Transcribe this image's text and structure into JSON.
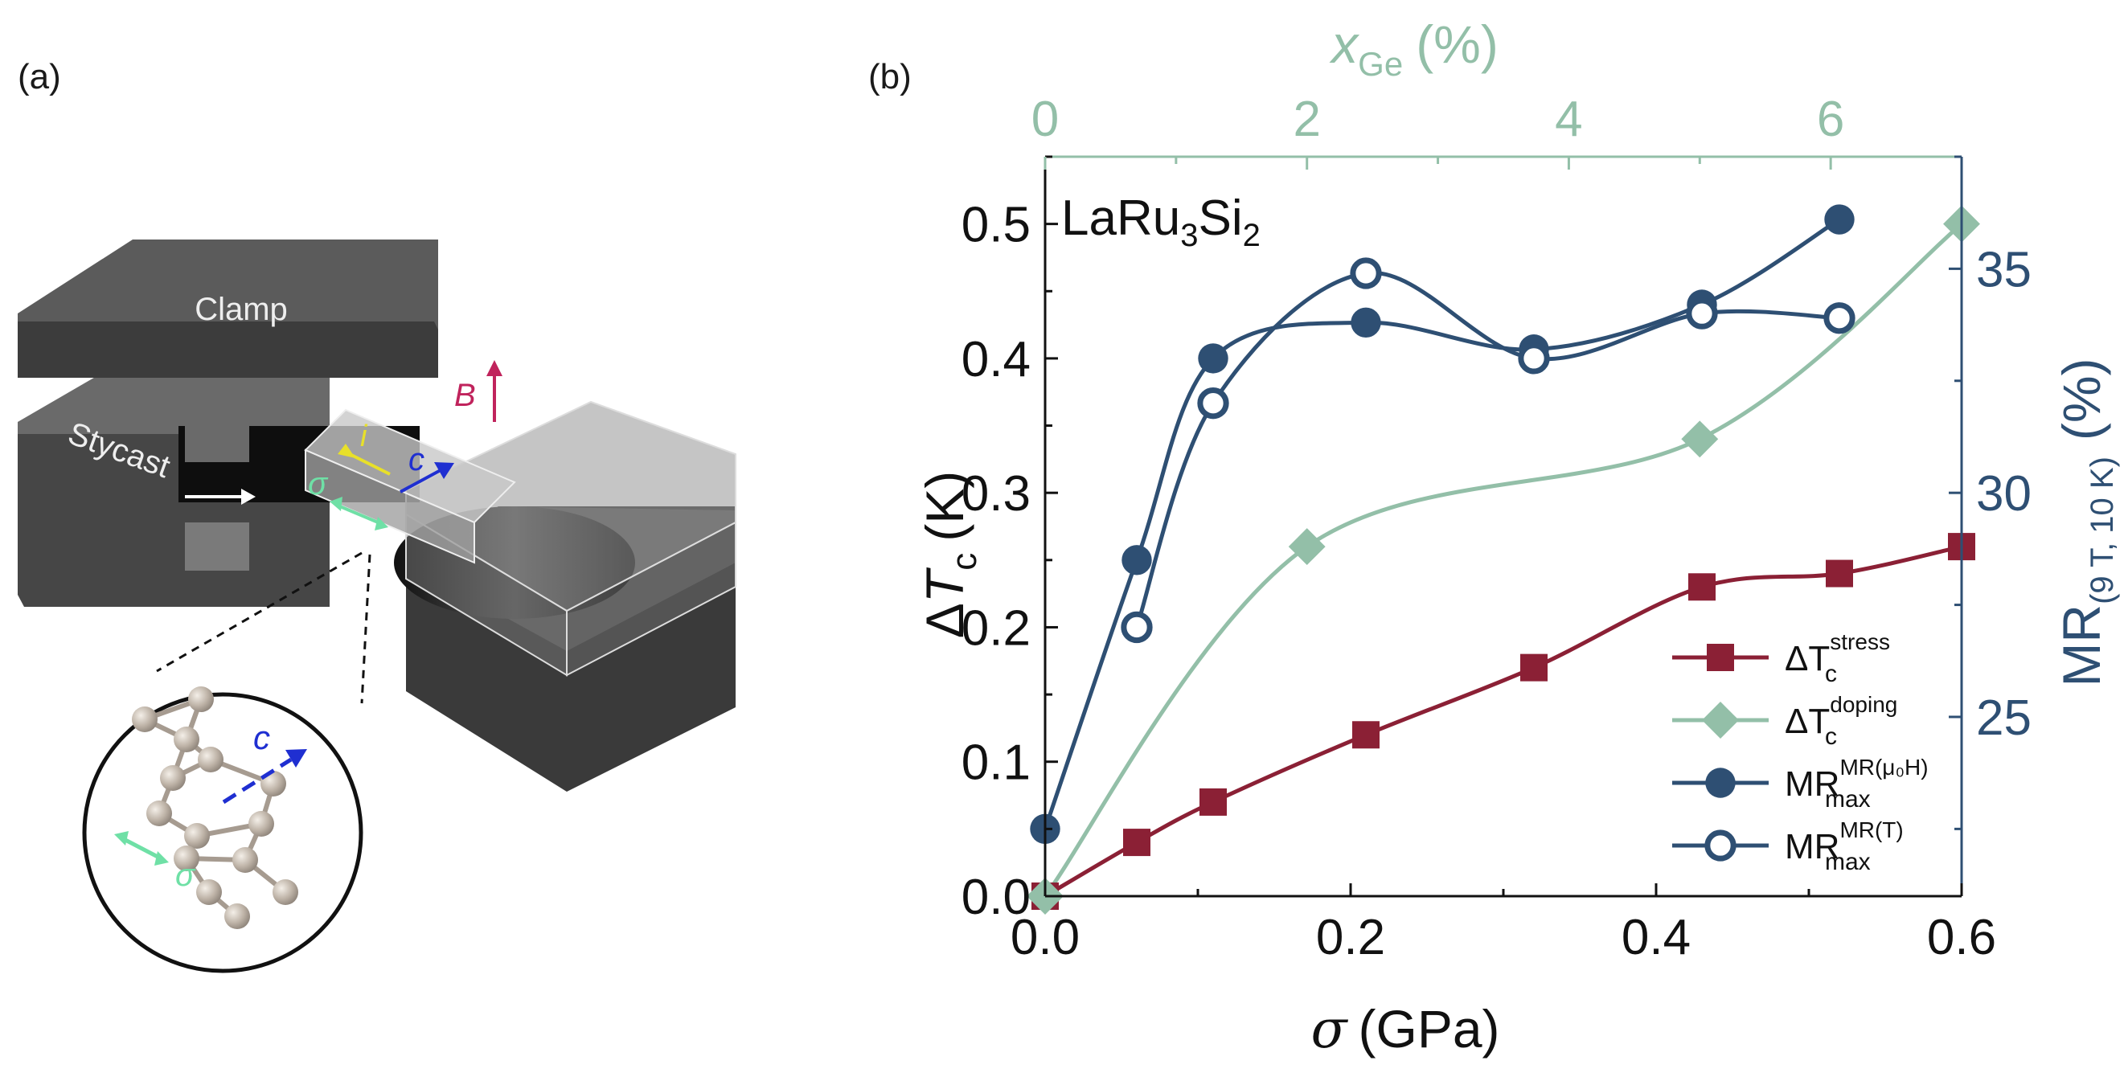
{
  "panel_labels": [
    "(a)",
    "(b)"
  ],
  "diagram": {
    "clamp_label": "Clamp",
    "stycast_label": "Stycast",
    "field_label": "B",
    "current_label": "i",
    "axis_label": "c",
    "stress_label": "σ",
    "inset_axis_label": "c",
    "inset_stress_label": "σ"
  },
  "colors": {
    "stress": "#8b2035",
    "doping": "#93bfa8",
    "mr": "#2e4f73",
    "field": "#c0235c",
    "current": "#e8e02a",
    "c_axis": "#1f2fd1",
    "sigma": "#6fe0a6"
  },
  "chart_data": {
    "type": "line",
    "sample_label": {
      "base": "LaRu",
      "sub1": "3",
      "mid": "Si",
      "sub2": "2"
    },
    "x_axis": {
      "symbol": "σ",
      "unit": "(GPa)",
      "range": [
        0,
        0.6
      ],
      "ticks": [
        0.0,
        0.2,
        0.4,
        0.6
      ],
      "tick_labels": [
        "0.0",
        "0.2",
        "0.4",
        "0.6"
      ]
    },
    "x_top_axis": {
      "symbol": "x",
      "sub": "Ge",
      "unit": "(%)",
      "range": [
        0,
        7
      ],
      "ticks": [
        0,
        2,
        4,
        6
      ],
      "tick_labels": [
        "0",
        "2",
        "4",
        "6"
      ]
    },
    "y_axis": {
      "prefix": "Δ",
      "symbol": "T",
      "sub": "c",
      "unit": "(K)",
      "range": [
        0,
        0.55
      ],
      "ticks": [
        0.0,
        0.1,
        0.2,
        0.3,
        0.4,
        0.5
      ],
      "tick_labels": [
        "0.0",
        "0.1",
        "0.2",
        "0.3",
        "0.4",
        "0.5"
      ]
    },
    "y_right_axis": {
      "base": "MR",
      "sub": "(9 T, 10 K)",
      "unit": "(%)",
      "range": [
        21,
        37.5
      ],
      "ticks": [
        25,
        30,
        35
      ],
      "tick_labels": [
        "25",
        "30",
        "35"
      ]
    },
    "series": [
      {
        "name": "stress",
        "label_base": "ΔT",
        "label_sub": "c",
        "label_sup": "stress",
        "axes": "bottom-left",
        "marker": "square",
        "color": "#8b2035",
        "x": [
          0.0,
          0.06,
          0.11,
          0.21,
          0.32,
          0.43,
          0.52,
          0.6
        ],
        "y": [
          0.0,
          0.04,
          0.07,
          0.12,
          0.17,
          0.23,
          0.24,
          0.26
        ]
      },
      {
        "name": "doping",
        "label_base": "ΔT",
        "label_sub": "c",
        "label_sup": "doping",
        "axes": "top-left",
        "marker": "diamond",
        "color": "#93bfa8",
        "x": [
          0.0,
          2.0,
          5.0,
          7.0
        ],
        "y": [
          0.0,
          0.26,
          0.34,
          0.5
        ]
      },
      {
        "name": "mr_field",
        "label_base": "MR",
        "label_sub": "max",
        "label_sup": "MR(μ₀H)",
        "axes": "bottom-right",
        "marker": "circle-filled",
        "color": "#2e4f73",
        "x": [
          0.0,
          0.06,
          0.11,
          0.21,
          0.32,
          0.43,
          0.52
        ],
        "y": [
          22.5,
          28.5,
          33.0,
          33.8,
          33.2,
          34.2,
          36.1
        ]
      },
      {
        "name": "mr_temperature",
        "label_base": "MR",
        "label_sub": "max",
        "label_sup": "MR(T)",
        "axes": "bottom-right",
        "marker": "circle-open",
        "color": "#2e4f73",
        "x": [
          0.06,
          0.11,
          0.21,
          0.32,
          0.43,
          0.52
        ],
        "y": [
          27.0,
          32.0,
          34.9,
          33.0,
          34.0,
          33.9
        ]
      }
    ],
    "legend_position": "lower-right"
  }
}
